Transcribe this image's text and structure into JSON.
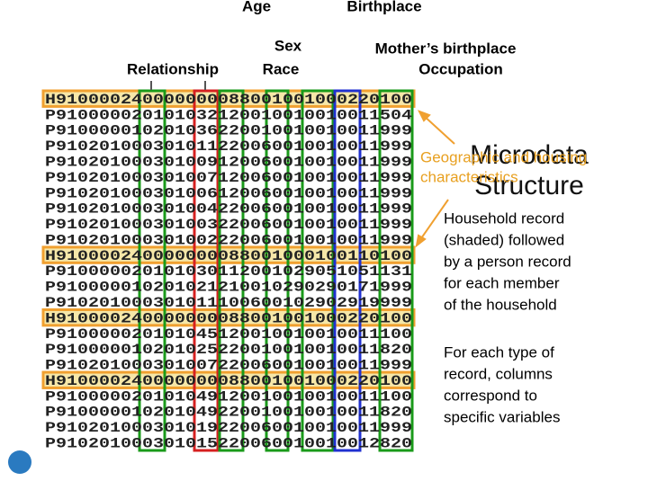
{
  "labels": [
    "Age",
    "Sex",
    "Relationship",
    "Race",
    "Birthplace",
    "Mother’s birthplace",
    "Occupation"
  ],
  "title": "Microdata Structure",
  "title_lines": [
    "Microdata",
    "Structure"
  ],
  "overlay_lines": [
    "Geographic and housing",
    "characteristics"
  ],
  "records": [
    "H910000240000000088001001000220100",
    "P910000020101032120010010010011504",
    "P910000010201036220010010010011999",
    "P910201000301011220060010010011999",
    "P910201000301009120060010010011999",
    "P910201000301007120060010010011999",
    "P910201000301006120060010010011999",
    "P910201000301004220060010010011999",
    "P910201000301003220060010010011999",
    "P910201000301002220060010010011999",
    "H910000240000000088001000100110100",
    "P910000020101030112001029051051131",
    "P910000010201021210010290290171999",
    "P910201000301011100600102902919999",
    "H910000240000000088001001000220100",
    "P910000020101045120010010010011100",
    "P910000010201025220010010010011820",
    "P910201000301007220060010010011999",
    "H910000240000000088001001000220100",
    "P910000020101049120010010010011100",
    "P910000010201049220010010010011820",
    "P910201000301019220060010010011999",
    "P910201000301015220060010010012820"
  ],
  "paragraphs": [
    [
      "Household record",
      "(shaded) followed",
      "by a person record",
      "for each member",
      "of the household"
    ],
    [
      "For each type of",
      "record, columns",
      "correspond to",
      "specific variables"
    ]
  ]
}
